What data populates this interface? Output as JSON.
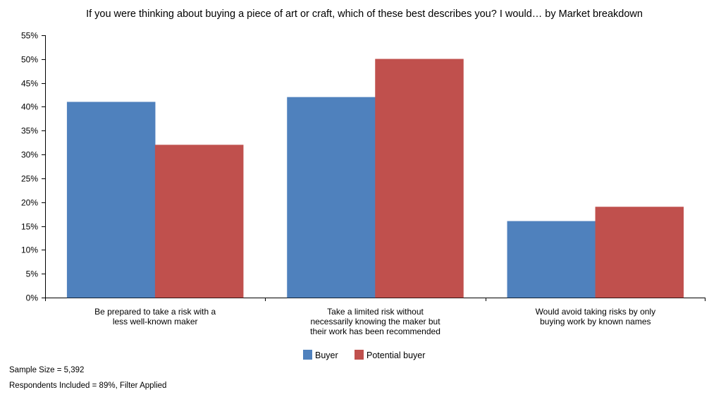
{
  "chart_data": {
    "type": "bar",
    "title": "If you were thinking about buying a piece of art or craft, which of these best describes you? I would… by Market breakdown",
    "categories": [
      [
        "Be prepared to take a risk with a",
        "less well-known maker"
      ],
      [
        "Take a limited risk without",
        "necessarily knowing the maker but",
        "their work has been recommended"
      ],
      [
        "Would avoid taking risks by only",
        "buying work by known names"
      ]
    ],
    "series": [
      {
        "name": "Buyer",
        "color": "#4f81bd",
        "values": [
          41,
          42,
          16
        ]
      },
      {
        "name": "Potential buyer",
        "color": "#c0504d",
        "values": [
          32,
          50,
          19
        ]
      }
    ],
    "y_ticks": [
      "0%",
      "5%",
      "10%",
      "15%",
      "20%",
      "25%",
      "30%",
      "35%",
      "40%",
      "45%",
      "50%",
      "55%"
    ],
    "ylim": [
      0,
      55
    ],
    "y_unit": "%",
    "grid": false,
    "legend_position": "bottom-center"
  },
  "footer": {
    "sample_size": "Sample Size = 5,392",
    "respondents": "Respondents Included = 89%, Filter Applied"
  }
}
